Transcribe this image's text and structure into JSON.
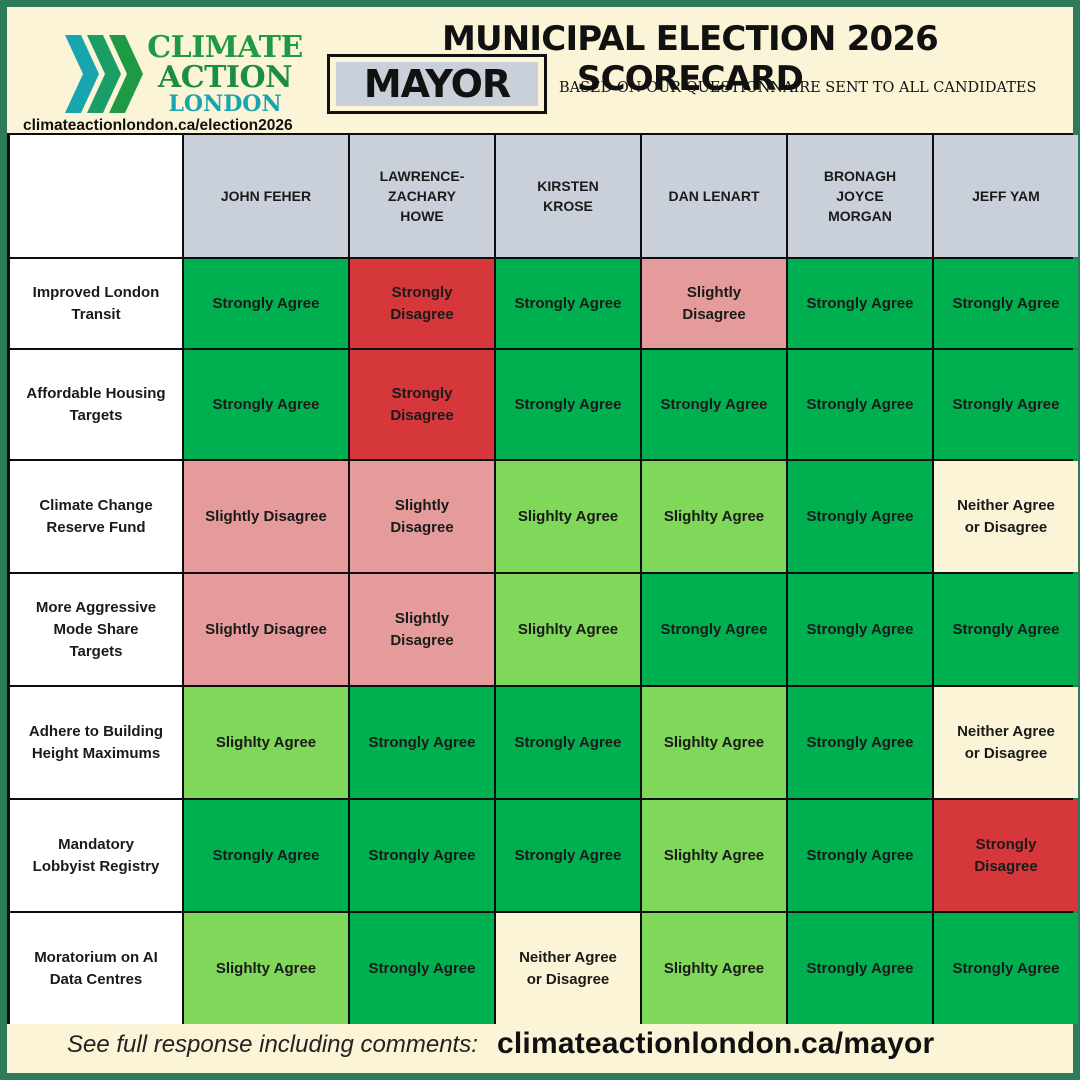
{
  "header": {
    "logo": {
      "line1": "CLIMATE",
      "line2": "ACTION",
      "line3": "LONDON"
    },
    "site_url": "climateactionlondon.ca/election2026",
    "title": "MUNICIPAL ELECTION 2026 SCORECARD",
    "office": "MAYOR",
    "subtitle": "BASED ON OUR QUESTIONNAIRE SENT TO ALL CANDIDATES"
  },
  "colors": {
    "strongly_agree": "#00b050",
    "slightly_agree": "#80d85a",
    "neither": "#fcf4d6",
    "slightly_disagree": "#e59a9b",
    "strongly_disagree": "#d6373b",
    "header": "#c9d0d9",
    "border": "#2e7b5a"
  },
  "candidates": [
    "JOHN FEHER",
    "LAWRENCE-ZACHARY HOWE",
    "KIRSTEN KROSE",
    "DAN LENART",
    "BRONAGH JOYCE MORGAN",
    "JEFF YAM"
  ],
  "rows": [
    {
      "topic": "Improved London Transit",
      "answers": [
        "Strongly Agree",
        "Strongly Disagree",
        "Strongly Agree",
        "Slightly Disagree",
        "Strongly Agree",
        "Strongly Agree"
      ],
      "levels": [
        "sa",
        "sd",
        "sa",
        "sld",
        "sa",
        "sa"
      ]
    },
    {
      "topic": "Affordable Housing Targets",
      "answers": [
        "Strongly Agree",
        "Strongly Disagree",
        "Strongly Agree",
        "Strongly Agree",
        "Strongly Agree",
        "Strongly Agree"
      ],
      "levels": [
        "sa",
        "sd",
        "sa",
        "sa",
        "sa",
        "sa"
      ]
    },
    {
      "topic": "Climate Change Reserve Fund",
      "answers": [
        "Slightly Disagree",
        "Slightly Disagree",
        "Slighlty Agree",
        "Slighlty Agree",
        "Strongly Agree",
        "Neither Agree or Disagree"
      ],
      "levels": [
        "sld",
        "sld",
        "sla",
        "sla",
        "sa",
        "n"
      ]
    },
    {
      "topic": "More Aggressive Mode Share Targets",
      "answers": [
        "Slightly Disagree",
        "Slightly Disagree",
        "Slighlty Agree",
        "Strongly Agree",
        "Strongly Agree",
        "Strongly Agree"
      ],
      "levels": [
        "sld",
        "sld",
        "sla",
        "sa",
        "sa",
        "sa"
      ]
    },
    {
      "topic": "Adhere to Building Height Maximums",
      "answers": [
        "Slighlty Agree",
        "Strongly Agree",
        "Strongly Agree",
        "Slighlty Agree",
        "Strongly Agree",
        "Neither Agree or Disagree"
      ],
      "levels": [
        "sla",
        "sa",
        "sa",
        "sla",
        "sa",
        "n"
      ]
    },
    {
      "topic": "Mandatory Lobbyist Registry",
      "answers": [
        "Strongly Agree",
        "Strongly Agree",
        "Strongly Agree",
        "Slighlty Agree",
        "Strongly Agree",
        "Strongly Disagree"
      ],
      "levels": [
        "sa",
        "sa",
        "sa",
        "sla",
        "sa",
        "sd"
      ]
    },
    {
      "topic": "Moratorium on AI Data Centres",
      "answers": [
        "Slighlty Agree",
        "Strongly Agree",
        "Neither Agree or Disagree",
        "Slighlty Agree",
        "Strongly Agree",
        "Strongly Agree"
      ],
      "levels": [
        "sla",
        "sa",
        "n",
        "sla",
        "sa",
        "sa"
      ]
    }
  ],
  "footer": {
    "note": "See full response including comments:",
    "url": "climateactionlondon.ca/mayor"
  }
}
